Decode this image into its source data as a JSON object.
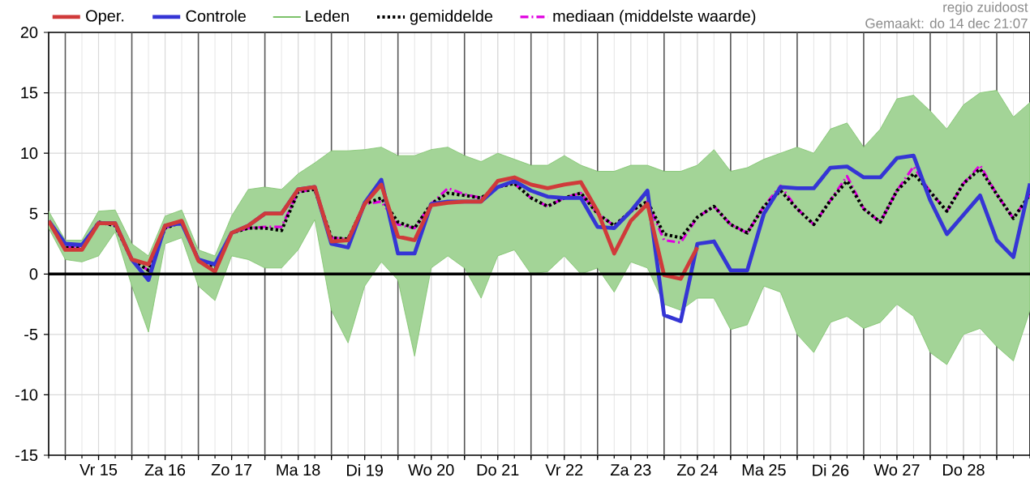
{
  "chart_data": {
    "type": "line",
    "annotations": [
      "regio zuidoost",
      "Gemaakt: do 14 dec 21:07"
    ],
    "categories": [
      null,
      null,
      null,
      "Vr 15",
      null,
      null,
      null,
      "Za 16",
      null,
      null,
      null,
      "Zo 17",
      null,
      null,
      null,
      "Ma 18",
      null,
      null,
      null,
      "Di 19",
      null,
      null,
      null,
      "Wo 20",
      null,
      null,
      null,
      "Do 21",
      null,
      null,
      null,
      "Vr 22",
      null,
      null,
      null,
      "Za 23",
      null,
      null,
      null,
      "Zo 24",
      null,
      null,
      null,
      "Ma 25",
      null,
      null,
      null,
      "Di 26",
      null,
      null,
      null,
      "Wo 27",
      null,
      null,
      null,
      "Do 28",
      null,
      null,
      null,
      null
    ],
    "ylim": [
      -15,
      20
    ],
    "yticks": [
      -15,
      -10,
      -5,
      0,
      5,
      10,
      15,
      20
    ],
    "grid": true,
    "legend": "top",
    "ref_lines": [
      {
        "axis": "y",
        "value": 0,
        "color": "#000000"
      }
    ],
    "series": [
      {
        "name": "Oper.",
        "color": "#d03a3a",
        "line_style": "solid",
        "values": [
          4.4,
          2.0,
          2.0,
          4.2,
          4.2,
          1.2,
          0.8,
          4.0,
          4.4,
          1.1,
          0.2,
          3.4,
          4.0,
          5.0,
          5.0,
          7.0,
          7.2,
          2.7,
          2.8,
          5.8,
          7.4,
          3.1,
          2.8,
          5.7,
          5.9,
          6.0,
          6.0,
          7.7,
          8.0,
          7.4,
          7.1,
          7.4,
          7.6,
          5.2,
          1.7,
          4.4,
          5.8,
          -0.1,
          -0.4,
          2.2,
          null,
          null,
          null,
          null,
          null,
          null,
          null,
          null,
          null,
          null,
          null,
          null,
          null,
          null,
          null,
          null,
          null,
          null,
          null,
          null
        ]
      },
      {
        "name": "Controle",
        "color": "#3535d5",
        "line_style": "solid",
        "values": [
          4.4,
          2.5,
          2.4,
          4.2,
          4.2,
          1.2,
          -0.5,
          4.0,
          4.2,
          1.2,
          0.8,
          3.4,
          4.0,
          5.0,
          5.0,
          7.0,
          7.2,
          2.5,
          2.2,
          5.9,
          7.8,
          1.7,
          1.7,
          5.8,
          6.0,
          6.0,
          6.0,
          7.2,
          7.7,
          6.9,
          6.4,
          6.3,
          6.3,
          3.9,
          3.8,
          5.2,
          6.9,
          -3.4,
          -3.9,
          2.5,
          2.7,
          0.3,
          0.3,
          5.0,
          7.2,
          7.1,
          7.1,
          8.8,
          8.9,
          8.0,
          8.0,
          9.6,
          9.8,
          6.1,
          3.3,
          4.9,
          6.5,
          2.8,
          1.4,
          7.5
        ]
      },
      {
        "name": "Leden",
        "color": "#7cc26a",
        "line_style": "solid",
        "values": [
          null,
          null,
          null,
          null,
          null,
          null,
          null,
          null,
          null,
          null,
          null,
          null,
          null,
          null,
          null,
          null,
          null,
          null,
          null,
          null,
          null,
          null,
          null,
          null,
          null,
          null,
          null,
          null,
          null,
          null,
          null,
          null,
          null,
          null,
          null,
          null,
          null,
          null,
          null,
          null,
          null,
          null,
          null,
          null,
          null,
          null,
          null,
          null,
          null,
          null,
          null,
          null,
          null,
          null,
          null,
          null,
          null,
          null,
          null,
          null
        ],
        "upper": [
          5.2,
          2.8,
          2.8,
          5.2,
          5.3,
          2.5,
          1.5,
          4.8,
          5.3,
          2.0,
          1.5,
          4.8,
          7.0,
          7.2,
          7.0,
          8.3,
          9.2,
          10.2,
          10.2,
          10.3,
          10.5,
          9.8,
          9.8,
          10.3,
          10.5,
          9.8,
          9.3,
          10.0,
          9.5,
          9.0,
          9.0,
          9.8,
          9.0,
          8.5,
          8.5,
          9.0,
          9.0,
          8.5,
          8.5,
          9.0,
          10.3,
          8.5,
          8.8,
          9.5,
          10.0,
          10.5,
          10.0,
          12.0,
          12.5,
          10.5,
          12.0,
          14.5,
          14.8,
          13.5,
          12.0,
          14.0,
          15.0,
          15.2,
          13.0,
          14.2
        ],
        "lower": [
          3.8,
          1.2,
          1.0,
          1.5,
          3.5,
          -1.0,
          -4.8,
          2.5,
          3.0,
          -1.0,
          -2.2,
          1.5,
          1.2,
          0.5,
          0.5,
          2.0,
          4.5,
          -3.0,
          -5.7,
          -1.0,
          1.0,
          -0.5,
          -6.8,
          0.5,
          1.5,
          0.5,
          -2.0,
          1.5,
          2.0,
          0.0,
          0.2,
          1.5,
          0.0,
          0.5,
          -1.5,
          1.0,
          0.5,
          -2.5,
          -3.0,
          -2.0,
          -2.0,
          -4.6,
          -4.2,
          -1.0,
          -1.5,
          -5.0,
          -6.5,
          -4.0,
          -3.5,
          -4.5,
          -4.0,
          -2.5,
          -3.5,
          -6.5,
          -7.5,
          -5.0,
          -4.5,
          -6.0,
          -7.2,
          -3.0
        ]
      },
      {
        "name": "gemiddelde",
        "color": "#000000",
        "line_style": "dotted",
        "values": [
          4.3,
          2.2,
          2.2,
          4.3,
          4.0,
          1.2,
          0.3,
          3.8,
          4.3,
          1.2,
          0.6,
          3.4,
          3.8,
          3.8,
          3.6,
          6.8,
          7.0,
          3.0,
          2.9,
          5.8,
          6.3,
          4.3,
          3.8,
          5.8,
          6.7,
          6.5,
          6.3,
          7.2,
          7.5,
          6.3,
          5.6,
          6.3,
          6.7,
          5.0,
          4.0,
          5.2,
          6.0,
          3.3,
          3.0,
          4.7,
          5.6,
          4.1,
          3.4,
          5.6,
          6.9,
          5.4,
          4.1,
          6.1,
          7.7,
          5.4,
          4.3,
          6.9,
          8.3,
          6.8,
          5.2,
          7.5,
          8.7,
          6.6,
          4.6,
          6.6
        ]
      },
      {
        "name": "mediaan (middelste waarde)",
        "color": "#e000e0",
        "line_style": "dashed",
        "values": [
          4.3,
          2.2,
          2.2,
          4.3,
          4.0,
          1.2,
          0.3,
          3.8,
          4.3,
          1.2,
          0.6,
          3.4,
          3.8,
          3.9,
          3.9,
          6.8,
          7.0,
          3.0,
          2.9,
          5.8,
          6.0,
          4.1,
          3.8,
          5.8,
          7.1,
          6.6,
          6.3,
          7.2,
          7.5,
          6.3,
          5.6,
          6.3,
          6.7,
          5.0,
          4.0,
          5.2,
          6.0,
          2.8,
          2.6,
          4.7,
          5.6,
          4.1,
          3.4,
          5.6,
          7.3,
          5.4,
          4.1,
          6.1,
          8.1,
          5.4,
          4.3,
          6.9,
          8.9,
          6.8,
          5.2,
          7.5,
          9.0,
          6.6,
          4.6,
          6.6
        ]
      }
    ]
  }
}
